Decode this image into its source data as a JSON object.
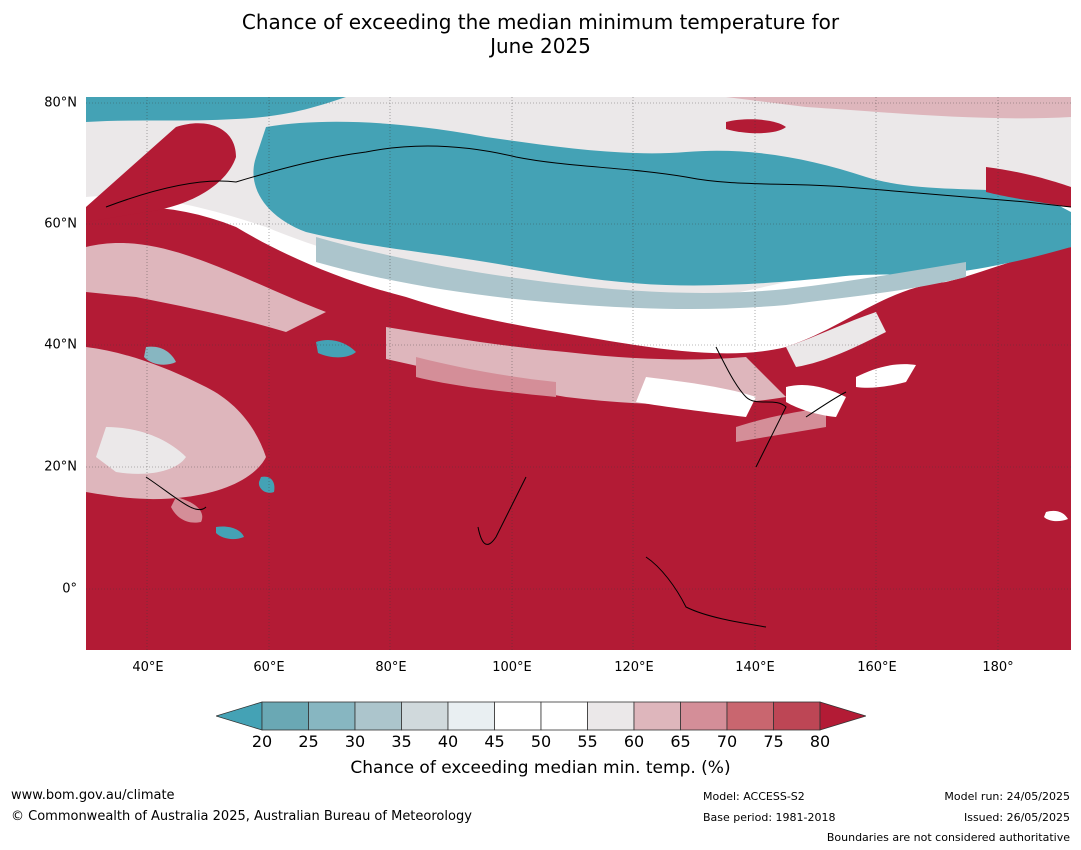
{
  "title_line1": "Chance of exceeding the median minimum temperature for",
  "title_line2": "June 2025",
  "map": {
    "lat_labels": [
      "80°N",
      "60°N",
      "40°N",
      "20°N",
      "0°"
    ],
    "lon_labels": [
      "40°E",
      "60°E",
      "80°E",
      "100°E",
      "120°E",
      "140°E",
      "160°E",
      "180°"
    ],
    "lat_values": [
      80,
      60,
      40,
      20,
      0
    ],
    "lon_values": [
      40,
      60,
      80,
      100,
      120,
      140,
      160,
      180
    ],
    "extent": {
      "lon_min": 30,
      "lon_max": 192,
      "lat_min": -10,
      "lat_max": 80
    }
  },
  "colorbar": {
    "ticks": [
      "20",
      "25",
      "30",
      "35",
      "40",
      "45",
      "50",
      "55",
      "60",
      "65",
      "70",
      "75",
      "80"
    ],
    "colors": [
      "#6aa8b4",
      "#87b6c1",
      "#acc5cc",
      "#d0d9dc",
      "#e9eff2",
      "#ffffff",
      "#ffffff",
      "#ebe8e9",
      "#deb6bc",
      "#d48e98",
      "#c9666f",
      "#bd4655"
    ],
    "under_color": "#44a2b5",
    "over_color": "#b31b35",
    "label": "Chance of exceeding median min. temp. (%)"
  },
  "footer": {
    "url": "www.bom.gov.au/climate",
    "copyright": "© Commonwealth of Australia 2025, Australian Bureau of Meteorology",
    "model": "Model: ACCESS-S2",
    "base_period": "Base period: 1981-2018",
    "model_run": "Model run: 24/05/2025",
    "issued": "Issued: 26/05/2025",
    "disclaimer": "Boundaries are not considered authoritative"
  }
}
